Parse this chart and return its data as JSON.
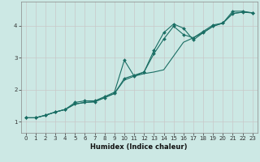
{
  "xlabel": "Humidex (Indice chaleur)",
  "bg_color": "#cce8e4",
  "line_color": "#1a6e64",
  "grid_color": "#c8c8c8",
  "xlim": [
    -0.5,
    23.5
  ],
  "ylim": [
    0.65,
    4.75
  ],
  "xticks": [
    0,
    1,
    2,
    3,
    4,
    5,
    6,
    7,
    8,
    9,
    10,
    11,
    12,
    13,
    14,
    15,
    16,
    17,
    18,
    19,
    20,
    21,
    22,
    23
  ],
  "yticks": [
    1,
    2,
    3,
    4
  ],
  "line1_x": [
    0,
    1,
    2,
    3,
    4,
    5,
    6,
    7,
    8,
    9,
    10,
    11,
    12,
    13,
    14,
    15,
    16,
    17,
    18,
    19,
    20,
    21,
    22,
    23
  ],
  "line1_y": [
    1.12,
    1.12,
    1.2,
    1.3,
    1.38,
    1.6,
    1.65,
    1.65,
    1.78,
    1.92,
    2.92,
    2.42,
    2.55,
    3.22,
    3.78,
    4.05,
    3.92,
    3.55,
    3.78,
    3.98,
    4.08,
    4.45,
    4.45,
    4.4
  ],
  "line2_x": [
    0,
    1,
    2,
    3,
    4,
    5,
    6,
    7,
    8,
    9,
    10,
    11,
    12,
    13,
    14,
    15,
    16,
    17,
    18,
    19,
    20,
    21,
    22,
    23
  ],
  "line2_y": [
    1.12,
    1.12,
    1.2,
    1.3,
    1.38,
    1.55,
    1.6,
    1.62,
    1.75,
    1.88,
    2.35,
    2.45,
    2.55,
    3.12,
    3.58,
    3.98,
    3.72,
    3.62,
    3.82,
    4.02,
    4.08,
    4.38,
    4.42,
    4.4
  ],
  "line3_x": [
    0,
    1,
    2,
    3,
    4,
    5,
    6,
    7,
    8,
    9,
    10,
    11,
    12,
    13,
    14,
    15,
    16,
    17,
    18,
    19,
    20,
    21,
    22,
    23
  ],
  "line3_y": [
    1.12,
    1.12,
    1.2,
    1.3,
    1.38,
    1.55,
    1.6,
    1.62,
    1.75,
    1.88,
    2.3,
    2.42,
    2.5,
    2.55,
    2.62,
    3.05,
    3.48,
    3.62,
    3.78,
    3.98,
    4.08,
    4.38,
    4.42,
    4.4
  ]
}
